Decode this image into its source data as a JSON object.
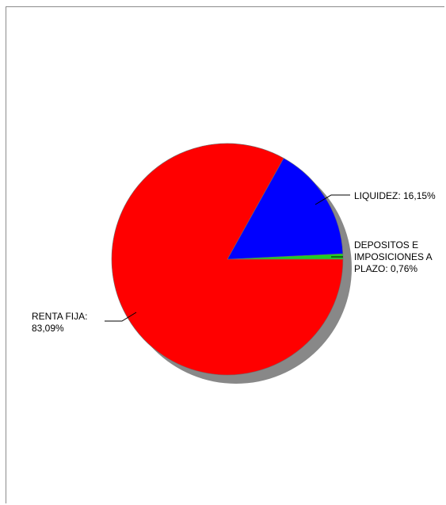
{
  "chart_data": {
    "type": "pie",
    "start_angle_deg": 0,
    "direction": "counterclockwise",
    "colors": {
      "shadow": "#888888",
      "leader": "#000000",
      "edge": "#6e6e6e"
    },
    "slices": [
      {
        "name": "DEPOSITOS E IMPOSICIONES A PLAZO",
        "value": 0.76,
        "color": "#22cc22",
        "label_lines": [
          "DEPOSITOS E",
          "IMPOSICIONES A",
          "PLAZO: 0,76%"
        ]
      },
      {
        "name": "LIQUIDEZ",
        "value": 16.15,
        "color": "#0000ff",
        "label_lines": [
          "LIQUIDEZ: 16,15%"
        ]
      },
      {
        "name": "RENTA FIJA",
        "value": 83.09,
        "color": "#ff0000",
        "label_lines": [
          "RENTA FIJA:",
          "83,09%"
        ]
      }
    ]
  }
}
